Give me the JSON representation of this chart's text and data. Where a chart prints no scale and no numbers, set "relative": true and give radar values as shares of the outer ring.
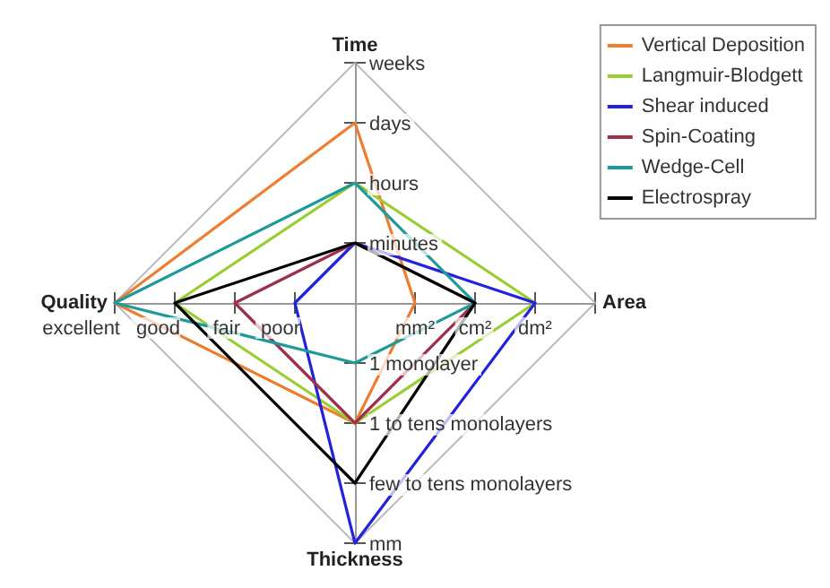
{
  "chart_data": {
    "type": "radar",
    "relative": true,
    "categories": [
      "Time",
      "Area",
      "Thickness",
      "Quality"
    ],
    "annotations": [
      {
        "text": "minutes",
        "x": "Time"
      },
      {
        "text": "hours",
        "x": "Time"
      },
      {
        "text": "days",
        "x": "Time"
      },
      {
        "text": "weeks",
        "x": "Time"
      },
      {
        "text": "mm²",
        "x": "Area"
      },
      {
        "text": "cm²",
        "x": "Area"
      },
      {
        "text": "dm²",
        "x": "Area"
      },
      {
        "text": "1 monolayer",
        "x": "Thickness"
      },
      {
        "text": "1 to tens monolayers",
        "x": "Thickness"
      },
      {
        "text": "few to tens monolayers",
        "x": "Thickness"
      },
      {
        "text": "mm",
        "x": "Thickness"
      },
      {
        "text": "poor",
        "x": "Quality"
      },
      {
        "text": "fair",
        "x": "Quality"
      },
      {
        "text": "good",
        "x": "Quality"
      },
      {
        "text": "excellent",
        "x": "Quality"
      }
    ],
    "series": [
      {
        "name": "Vertical Deposition",
        "color": "#ed7d31",
        "values": [
          0.75,
          0.25,
          0.5,
          1
        ]
      },
      {
        "name": "Langmuir-Blodgett",
        "color": "#9acd32",
        "values": [
          0.5,
          0.75,
          0.5,
          0.75
        ]
      },
      {
        "name": "Shear induced",
        "color": "#2222dd",
        "values": [
          0.25,
          0.75,
          1,
          0.25
        ]
      },
      {
        "name": "Spin-Coating",
        "color": "#a0304a",
        "values": [
          0.25,
          0.5,
          0.5,
          0.5
        ]
      },
      {
        "name": "Wedge-Cell",
        "color": "#1f9a9a",
        "values": [
          0.5,
          0.5,
          0.25,
          1
        ]
      },
      {
        "name": "Electrospray",
        "color": "#000000",
        "values": [
          0.25,
          0.5,
          0.75,
          0.75
        ]
      }
    ],
    "legend": "top right",
    "line_style": "solid",
    "marker": "none"
  }
}
